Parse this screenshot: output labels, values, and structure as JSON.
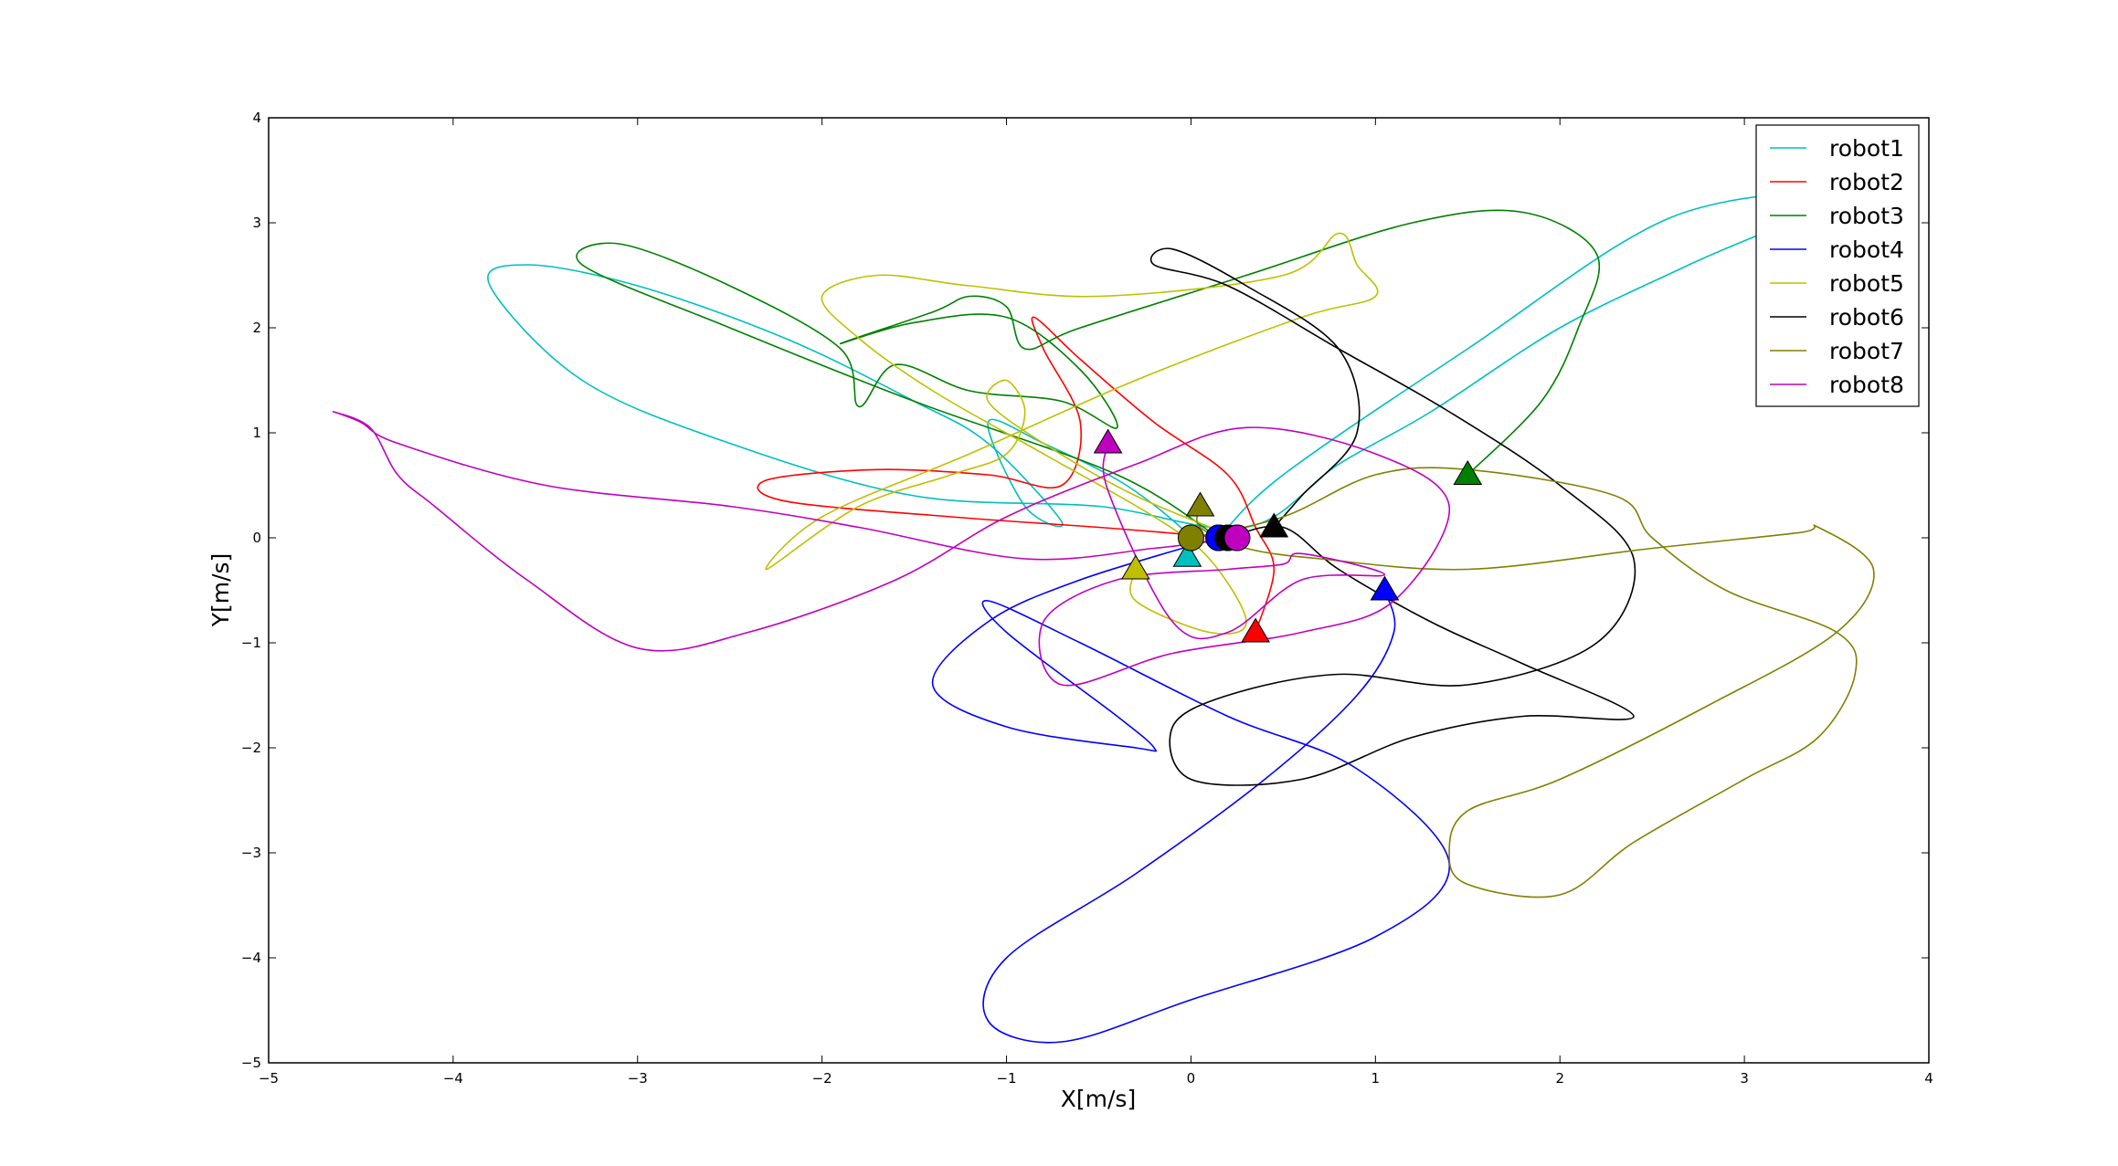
{
  "chart_data": {
    "type": "line",
    "title": "",
    "xlabel": "X[m/s]",
    "ylabel": "Y[m/s]",
    "xlim": [
      -5,
      4
    ],
    "ylim": [
      -5,
      4
    ],
    "xticks": [
      -5,
      -4,
      -3,
      -2,
      -1,
      0,
      1,
      2,
      3,
      4
    ],
    "yticks": [
      -5,
      -4,
      -3,
      -2,
      -1,
      0,
      1,
      2,
      3,
      4
    ],
    "xtick_labels": [
      "−5",
      "−4",
      "−3",
      "−2",
      "−1",
      "0",
      "1",
      "2",
      "3",
      "4"
    ],
    "ytick_labels": [
      "−5",
      "−4",
      "−3",
      "−2",
      "−1",
      "0",
      "1",
      "2",
      "3",
      "4"
    ],
    "grid": false,
    "legend_position": "top-right",
    "start_marker": "circle",
    "end_marker": "triangle",
    "series": [
      {
        "name": "robot1",
        "color": "#00bfbf",
        "points": [
          [
            0.15,
            0
          ],
          [
            0.5,
            0.6
          ],
          [
            1.5,
            1.8
          ],
          [
            2.6,
            3.05
          ],
          [
            3.5,
            3.25
          ],
          [
            2.7,
            2.6
          ],
          [
            2.0,
            2.0
          ],
          [
            1.3,
            1.2
          ],
          [
            0.8,
            0.7
          ],
          [
            0.3,
            0.1
          ],
          [
            -0.5,
            0.3
          ],
          [
            -1.5,
            0.4
          ],
          [
            -2.5,
            0.9
          ],
          [
            -3.3,
            1.5
          ],
          [
            -3.8,
            2.4
          ],
          [
            -3.6,
            2.6
          ],
          [
            -3.0,
            2.4
          ],
          [
            -2.2,
            1.9
          ],
          [
            -1.5,
            1.3
          ],
          [
            -1.1,
            0.9
          ],
          [
            -0.7,
            0.15
          ],
          [
            -0.9,
            0.3
          ],
          [
            -1.1,
            1.1
          ],
          [
            -0.8,
            0.9
          ],
          [
            -0.35,
            0.5
          ],
          [
            0.0,
            0.0
          ],
          [
            -0.02,
            -0.18
          ]
        ]
      },
      {
        "name": "robot2",
        "color": "#ff0000",
        "points": [
          [
            0.2,
            0
          ],
          [
            -0.5,
            0.1
          ],
          [
            -1.3,
            0.2
          ],
          [
            -2.2,
            0.35
          ],
          [
            -2.3,
            0.55
          ],
          [
            -1.7,
            0.65
          ],
          [
            -1.1,
            0.6
          ],
          [
            -0.7,
            0.5
          ],
          [
            -0.6,
            1.1
          ],
          [
            -0.8,
            1.8
          ],
          [
            -0.85,
            2.1
          ],
          [
            -0.6,
            1.7
          ],
          [
            -0.2,
            1.1
          ],
          [
            0.2,
            0.6
          ],
          [
            0.35,
            0.1
          ],
          [
            0.45,
            -0.3
          ],
          [
            0.35,
            -0.9
          ]
        ]
      },
      {
        "name": "robot3",
        "color": "#008000",
        "points": [
          [
            0.15,
            0
          ],
          [
            -0.4,
            0.6
          ],
          [
            -1.5,
            1.3
          ],
          [
            -2.5,
            2.0
          ],
          [
            -3.3,
            2.6
          ],
          [
            -3.1,
            2.8
          ],
          [
            -2.5,
            2.4
          ],
          [
            -1.9,
            1.8
          ],
          [
            -1.8,
            1.25
          ],
          [
            -1.6,
            1.65
          ],
          [
            -1.2,
            1.4
          ],
          [
            -0.7,
            1.3
          ],
          [
            -0.4,
            1.05
          ],
          [
            -0.6,
            1.6
          ],
          [
            -1.0,
            2.1
          ],
          [
            -1.5,
            2.05
          ],
          [
            -1.9,
            1.85
          ],
          [
            -1.4,
            2.15
          ],
          [
            -1.2,
            2.3
          ],
          [
            -1.0,
            2.2
          ],
          [
            -0.9,
            1.8
          ],
          [
            -0.6,
            2.0
          ],
          [
            0.3,
            2.5
          ],
          [
            1.2,
            3.0
          ],
          [
            1.8,
            3.1
          ],
          [
            2.2,
            2.7
          ],
          [
            2.1,
            2.0
          ],
          [
            1.9,
            1.3
          ],
          [
            1.5,
            0.6
          ]
        ]
      },
      {
        "name": "robot4",
        "color": "#0000ff",
        "points": [
          [
            0.15,
            0
          ],
          [
            -0.6,
            -0.4
          ],
          [
            -1.1,
            -0.8
          ],
          [
            -1.4,
            -1.4
          ],
          [
            -1.0,
            -1.8
          ],
          [
            -0.3,
            -2.0
          ],
          [
            -0.2,
            -2.0
          ],
          [
            -0.4,
            -1.7
          ],
          [
            -1.0,
            -0.9
          ],
          [
            -1.1,
            -0.6
          ],
          [
            -0.6,
            -1.0
          ],
          [
            0.2,
            -1.7
          ],
          [
            0.9,
            -2.2
          ],
          [
            1.4,
            -3.1
          ],
          [
            1.0,
            -3.8
          ],
          [
            0.0,
            -4.4
          ],
          [
            -0.7,
            -4.8
          ],
          [
            -1.1,
            -4.6
          ],
          [
            -1.0,
            -4.0
          ],
          [
            -0.3,
            -3.2
          ],
          [
            0.4,
            -2.3
          ],
          [
            0.9,
            -1.5
          ],
          [
            1.1,
            -0.9
          ],
          [
            1.05,
            -0.5
          ]
        ]
      },
      {
        "name": "robot5",
        "color": "#bfbf00",
        "points": [
          [
            0.25,
            0
          ],
          [
            -0.3,
            0.4
          ],
          [
            -0.8,
            0.9
          ],
          [
            -1.1,
            1.3
          ],
          [
            -1.0,
            1.5
          ],
          [
            -0.9,
            1.2
          ],
          [
            -1.0,
            0.8
          ],
          [
            -1.3,
            0.6
          ],
          [
            -1.8,
            0.3
          ],
          [
            -2.3,
            -0.3
          ],
          [
            -2.0,
            0.2
          ],
          [
            -1.2,
            0.8
          ],
          [
            -0.3,
            1.5
          ],
          [
            0.6,
            2.1
          ],
          [
            1.0,
            2.3
          ],
          [
            0.9,
            2.6
          ],
          [
            0.8,
            2.9
          ],
          [
            0.5,
            2.5
          ],
          [
            -0.5,
            2.3
          ],
          [
            -1.2,
            2.4
          ],
          [
            -1.7,
            2.5
          ],
          [
            -2.0,
            2.3
          ],
          [
            -1.8,
            1.9
          ],
          [
            -1.4,
            1.4
          ],
          [
            -0.8,
            0.8
          ],
          [
            -0.2,
            0.2
          ],
          [
            0.1,
            -0.2
          ],
          [
            0.3,
            -0.8
          ],
          [
            0.1,
            -0.9
          ],
          [
            -0.3,
            -0.6
          ],
          [
            -0.3,
            -0.3
          ]
        ]
      },
      {
        "name": "robot6",
        "color": "#000000",
        "points": [
          [
            0.2,
            0
          ],
          [
            0.5,
            0.1
          ],
          [
            0.8,
            -0.3
          ],
          [
            1.3,
            -0.8
          ],
          [
            1.8,
            -1.2
          ],
          [
            2.4,
            -1.7
          ],
          [
            1.8,
            -1.7
          ],
          [
            1.2,
            -1.9
          ],
          [
            0.6,
            -2.3
          ],
          [
            0.0,
            -2.3
          ],
          [
            -0.1,
            -1.8
          ],
          [
            0.2,
            -1.5
          ],
          [
            0.8,
            -1.3
          ],
          [
            1.5,
            -1.4
          ],
          [
            2.2,
            -1.0
          ],
          [
            2.4,
            -0.2
          ],
          [
            2.0,
            0.5
          ],
          [
            1.4,
            1.2
          ],
          [
            0.8,
            1.8
          ],
          [
            0.2,
            2.4
          ],
          [
            -0.2,
            2.6
          ],
          [
            -0.1,
            2.75
          ],
          [
            0.3,
            2.4
          ],
          [
            0.8,
            1.8
          ],
          [
            0.9,
            1.0
          ],
          [
            0.6,
            0.4
          ],
          [
            0.45,
            0.1
          ]
        ]
      },
      {
        "name": "robot7",
        "color": "#808000",
        "points": [
          [
            0.0,
            0
          ],
          [
            0.5,
            0.2
          ],
          [
            1.0,
            0.6
          ],
          [
            1.5,
            0.65
          ],
          [
            2.3,
            0.4
          ],
          [
            2.5,
            0.0
          ],
          [
            2.9,
            -0.5
          ],
          [
            3.5,
            -0.9
          ],
          [
            3.6,
            -1.3
          ],
          [
            3.4,
            -1.9
          ],
          [
            3.0,
            -2.3
          ],
          [
            2.4,
            -2.9
          ],
          [
            2.0,
            -3.4
          ],
          [
            1.5,
            -3.3
          ],
          [
            1.4,
            -3.0
          ],
          [
            1.5,
            -2.6
          ],
          [
            2.0,
            -2.3
          ],
          [
            2.8,
            -1.6
          ],
          [
            3.5,
            -0.9
          ],
          [
            3.7,
            -0.3
          ],
          [
            3.4,
            0.1
          ],
          [
            3.3,
            0.05
          ],
          [
            2.5,
            -0.1
          ],
          [
            1.5,
            -0.3
          ],
          [
            0.7,
            -0.2
          ],
          [
            0.3,
            -0.1
          ],
          [
            0.05,
            0.1
          ],
          [
            0.05,
            0.3
          ]
        ]
      },
      {
        "name": "robot8",
        "color": "#bf00bf",
        "points": [
          [
            0.25,
            0
          ],
          [
            -0.2,
            -0.1
          ],
          [
            -0.9,
            -0.2
          ],
          [
            -1.8,
            0.1
          ],
          [
            -2.5,
            0.3
          ],
          [
            -3.5,
            0.5
          ],
          [
            -4.3,
            0.9
          ],
          [
            -4.5,
            1.1
          ],
          [
            -4.65,
            1.2
          ],
          [
            -4.45,
            1.05
          ],
          [
            -4.3,
            0.6
          ],
          [
            -4.1,
            0.3
          ],
          [
            -3.6,
            -0.4
          ],
          [
            -3.0,
            -1.05
          ],
          [
            -2.4,
            -0.9
          ],
          [
            -1.6,
            -0.4
          ],
          [
            -1.0,
            0.2
          ],
          [
            -0.3,
            0.7
          ],
          [
            0.3,
            1.05
          ],
          [
            1.0,
            0.8
          ],
          [
            1.4,
            0.3
          ],
          [
            1.1,
            -0.6
          ],
          [
            0.6,
            -0.9
          ],
          [
            -0.1,
            -1.1
          ],
          [
            -0.7,
            -1.4
          ],
          [
            -0.8,
            -0.8
          ],
          [
            -0.4,
            -0.4
          ],
          [
            0.2,
            -0.3
          ],
          [
            0.5,
            -0.25
          ],
          [
            0.6,
            -0.15
          ],
          [
            1.05,
            -0.35
          ],
          [
            0.6,
            -0.4
          ],
          [
            0.2,
            -0.9
          ],
          [
            -0.1,
            -0.8
          ],
          [
            -0.45,
            0.45
          ],
          [
            -0.45,
            0.9
          ]
        ]
      }
    ]
  }
}
